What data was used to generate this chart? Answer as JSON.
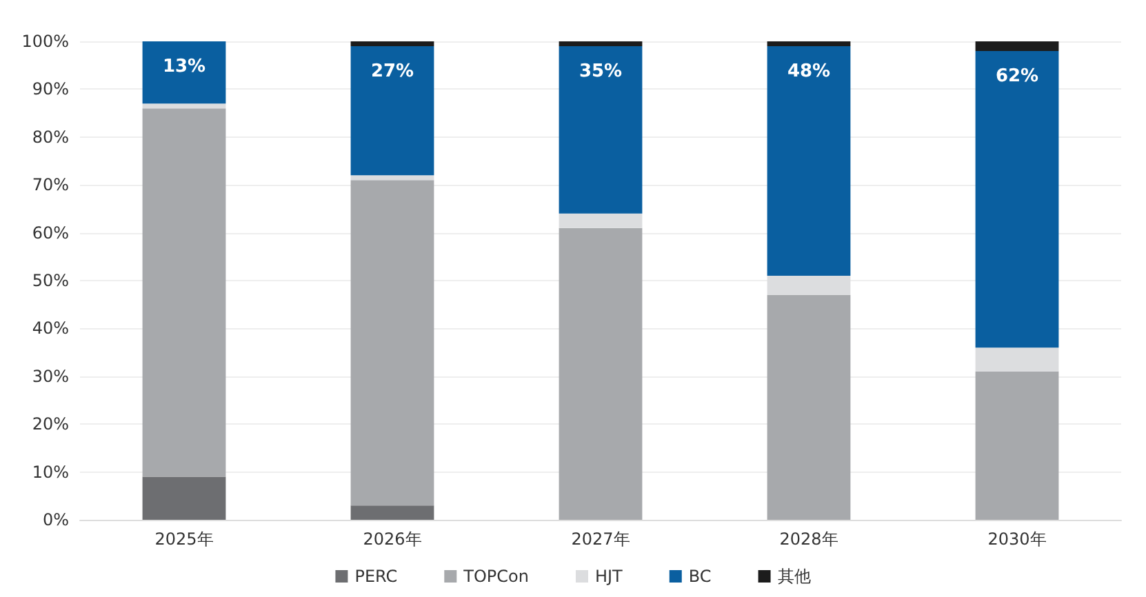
{
  "chart_data": {
    "type": "bar",
    "stacked": true,
    "categories": [
      "2025年",
      "2026年",
      "2027年",
      "2028年",
      "2030年"
    ],
    "series": [
      {
        "name": "PERC",
        "color": "#6d6e71",
        "values": [
          9,
          3,
          0,
          0,
          0
        ]
      },
      {
        "name": "TOPCon",
        "color": "#a7a9ac",
        "values": [
          77,
          68,
          61,
          47,
          31
        ]
      },
      {
        "name": "HJT",
        "color": "#dcdddf",
        "values": [
          1,
          1,
          3,
          4,
          5
        ]
      },
      {
        "name": "BC",
        "color": "#0a5fa0",
        "values": [
          13,
          27,
          35,
          48,
          62
        ],
        "value_labels": [
          "13%",
          "27%",
          "35%",
          "48%",
          "62%"
        ]
      },
      {
        "name": "其他",
        "color": "#1c1c1c",
        "values": [
          0,
          1,
          1,
          1,
          2
        ]
      }
    ],
    "ylim": [
      0,
      100
    ],
    "yticks": [
      {
        "value": 0,
        "label": "0%"
      },
      {
        "value": 10,
        "label": "10%"
      },
      {
        "value": 20,
        "label": "20%"
      },
      {
        "value": 30,
        "label": "30%"
      },
      {
        "value": 40,
        "label": "40%"
      },
      {
        "value": 50,
        "label": "50%"
      },
      {
        "value": 60,
        "label": "60%"
      },
      {
        "value": 70,
        "label": "70%"
      },
      {
        "value": 80,
        "label": "80%"
      },
      {
        "value": 90,
        "label": "90%"
      },
      {
        "value": 100,
        "label": "100%"
      }
    ],
    "grid": "y",
    "legend": "bottom"
  }
}
